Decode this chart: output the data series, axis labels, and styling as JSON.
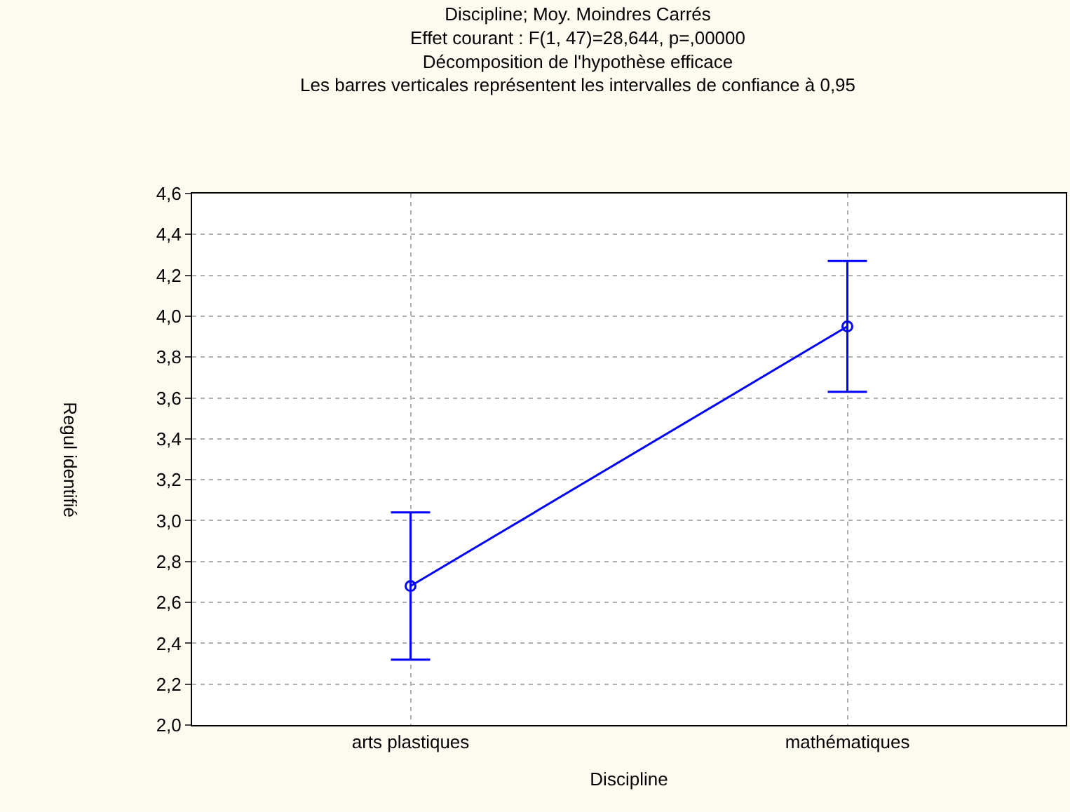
{
  "chart_data": {
    "type": "line",
    "title": "Discipline; Moy. Moindres Carrés",
    "subtitle": "Effet courant : F(1, 47)=28,644, p=,00000\nDécomposition de l'hypothèse efficace\nLes barres verticales représentent les intervalles de confiance à 0,95",
    "xlabel": "Discipline",
    "ylabel": "Regul identifié",
    "categories": [
      "arts plastiques",
      "mathématiques"
    ],
    "series": [
      {
        "color": "#0000ff",
        "values": [
          2.68,
          3.95
        ],
        "errors": [
          [
            2.32,
            3.04
          ],
          [
            3.63,
            4.27
          ]
        ]
      }
    ],
    "ylim": [
      2.0,
      4.6
    ],
    "yticks": [
      {
        "value": 2.0,
        "label": "2,0"
      },
      {
        "value": 2.2,
        "label": "2,2"
      },
      {
        "value": 2.4,
        "label": "2,4"
      },
      {
        "value": 2.6,
        "label": "2,6"
      },
      {
        "value": 2.8,
        "label": "2,8"
      },
      {
        "value": 3.0,
        "label": "3,0"
      },
      {
        "value": 3.2,
        "label": "3,2"
      },
      {
        "value": 3.4,
        "label": "3,4"
      },
      {
        "value": 3.6,
        "label": "3,6"
      },
      {
        "value": 3.8,
        "label": "3,8"
      },
      {
        "value": 4.0,
        "label": "4,0"
      },
      {
        "value": 4.2,
        "label": "4,2"
      },
      {
        "value": 4.4,
        "label": "4,4"
      },
      {
        "value": 4.6,
        "label": "4,6"
      }
    ],
    "grid": true,
    "marker": "circle",
    "line_style": "solid"
  }
}
